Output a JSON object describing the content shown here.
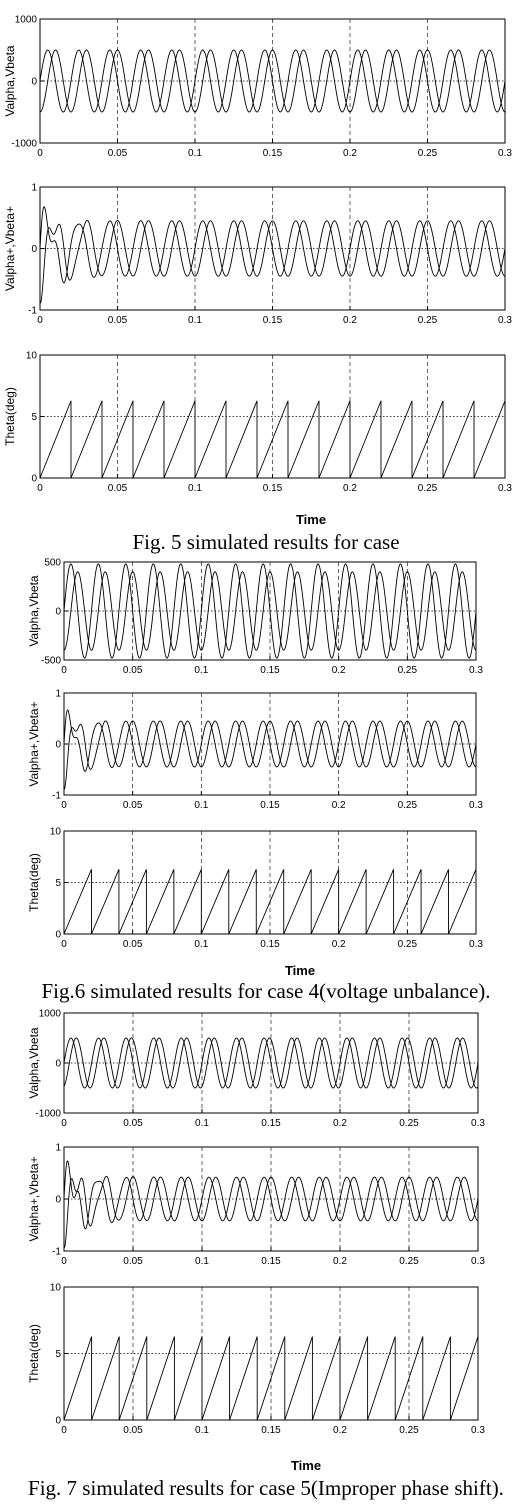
{
  "figures": [
    {
      "caption": "Fig. 5 simulated results for case",
      "xlabel": "Time"
    },
    {
      "caption": "Fig.6 simulated results for case 4(voltage unbalance).",
      "xlabel": "Time"
    },
    {
      "caption": "Fig. 7 simulated results for case 5(Improper phase shift).",
      "xlabel": "Time"
    }
  ],
  "chart_data": [
    {
      "figure": 0,
      "type": "line",
      "ylabel": "Valpha,Vbeta",
      "xlim": [
        0,
        0.3
      ],
      "ylim": [
        -1000,
        1000
      ],
      "xticks": [
        "0",
        "0.05",
        "0.1",
        "0.15",
        "0.2",
        "0.25",
        "0.3"
      ],
      "yticks": [
        "1000",
        "0",
        "-1000"
      ],
      "grid": "vertical-dashed",
      "reference_line": 0,
      "signal": {
        "kind": "sine_pair",
        "amplitude": 500,
        "frequency_hz": 50,
        "phase_shift_deg": 90
      }
    },
    {
      "figure": 0,
      "type": "line",
      "ylabel": "Valpha+,Vbeta+",
      "xlim": [
        0,
        0.3
      ],
      "ylim": [
        -1,
        1
      ],
      "xticks": [
        "0",
        "0.05",
        "0.1",
        "0.15",
        "0.2",
        "0.25",
        "0.3"
      ],
      "yticks": [
        "1",
        "0",
        "-1"
      ],
      "grid": "vertical-dashed",
      "reference_line": 0,
      "signal": {
        "kind": "sine_pair_transient",
        "amplitude": 0.45,
        "frequency_hz": 50,
        "phase_shift_deg": 90,
        "initial_peak": 0.9,
        "settle_time": 0.035
      }
    },
    {
      "figure": 0,
      "type": "line",
      "ylabel": "Theta(deg)",
      "xlim": [
        0,
        0.3
      ],
      "ylim": [
        0,
        10
      ],
      "xticks": [
        "0",
        "0.05",
        "0.1",
        "0.15",
        "0.2",
        "0.25",
        "0.3"
      ],
      "yticks": [
        "10",
        "5",
        "0"
      ],
      "grid": "vertical-dashed",
      "reference_line": 5,
      "signal": {
        "kind": "sawtooth",
        "max": 6.28,
        "period": 0.02
      }
    },
    {
      "figure": 1,
      "type": "line",
      "ylabel": "Valpha,Vbeta",
      "xlim": [
        0,
        0.3
      ],
      "ylim": [
        -500,
        500
      ],
      "xticks": [
        "0",
        "0.05",
        "0.1",
        "0.15",
        "0.2",
        "0.25",
        "0.3"
      ],
      "yticks": [
        "500",
        "0",
        "-500"
      ],
      "grid": "vertical-dashed",
      "reference_line": 0,
      "signal": {
        "kind": "sine_pair",
        "amplitude": 480,
        "amplitude_b": 400,
        "frequency_hz": 50,
        "phase_shift_deg": 90
      }
    },
    {
      "figure": 1,
      "type": "line",
      "ylabel": "Valpha+,Vbeta+",
      "xlim": [
        0,
        0.3
      ],
      "ylim": [
        -1,
        1
      ],
      "xticks": [
        "0",
        "0.05",
        "0.1",
        "0.15",
        "0.2",
        "0.25",
        "0.3"
      ],
      "yticks": [
        "1",
        "0",
        "-1"
      ],
      "grid": "vertical-dashed",
      "reference_line": 0,
      "signal": {
        "kind": "sine_pair_transient",
        "amplitude": 0.45,
        "frequency_hz": 50,
        "phase_shift_deg": 90,
        "initial_peak": 0.9,
        "settle_time": 0.03
      }
    },
    {
      "figure": 1,
      "type": "line",
      "ylabel": "Theta(deg)",
      "xlim": [
        0,
        0.3
      ],
      "ylim": [
        0,
        10
      ],
      "xticks": [
        "0",
        "0.05",
        "0.1",
        "0.15",
        "0.2",
        "0.25",
        "0.3"
      ],
      "yticks": [
        "10",
        "5",
        "0"
      ],
      "grid": "vertical-dashed",
      "reference_line": 5,
      "signal": {
        "kind": "sawtooth",
        "max": 6.28,
        "period": 0.02
      }
    },
    {
      "figure": 2,
      "type": "line",
      "ylabel": "Valpha,Vbeta",
      "xlim": [
        0,
        0.3
      ],
      "ylim": [
        -1000,
        1000
      ],
      "xticks": [
        "0",
        "0.05",
        "0.1",
        "0.15",
        "0.2",
        "0.25",
        "0.3"
      ],
      "yticks": [
        "1000",
        "0",
        "-1000"
      ],
      "grid": "vertical-dashed",
      "reference_line": 0,
      "signal": {
        "kind": "sine_pair",
        "amplitude": 500,
        "frequency_hz": 50,
        "phase_shift_deg": 70
      }
    },
    {
      "figure": 2,
      "type": "line",
      "ylabel": "Valpha+,Vbeta+",
      "xlim": [
        0,
        0.3
      ],
      "ylim": [
        -1,
        1
      ],
      "xticks": [
        "0",
        "0.05",
        "0.1",
        "0.15",
        "0.2",
        "0.25",
        "0.3"
      ],
      "yticks": [
        "1",
        "0",
        "-1"
      ],
      "grid": "vertical-dashed",
      "reference_line": 0,
      "signal": {
        "kind": "sine_pair_transient",
        "amplitude": 0.42,
        "frequency_hz": 50,
        "phase_shift_deg": 90,
        "initial_peak": 0.95,
        "settle_time": 0.04
      }
    },
    {
      "figure": 2,
      "type": "line",
      "ylabel": "Theta(deg)",
      "xlim": [
        0,
        0.3
      ],
      "ylim": [
        0,
        10
      ],
      "xticks": [
        "0",
        "0.05",
        "0.1",
        "0.15",
        "0.2",
        "0.25",
        "0.3"
      ],
      "yticks": [
        "10",
        "5",
        "0"
      ],
      "grid": "vertical-dashed",
      "reference_line": 5,
      "signal": {
        "kind": "sawtooth",
        "max": 6.28,
        "period": 0.02
      }
    }
  ]
}
